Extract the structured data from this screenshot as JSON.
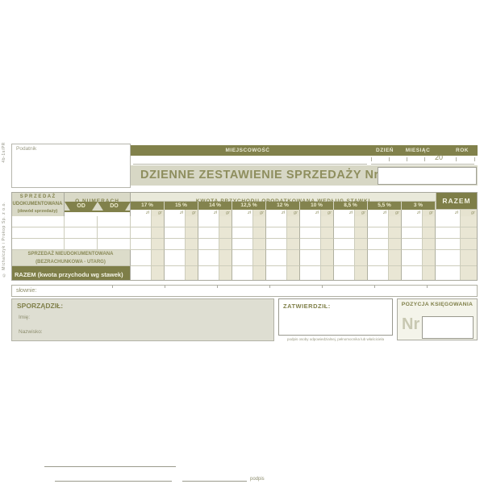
{
  "colors": {
    "olive_dark": "#81814b",
    "olive_text": "#83834e",
    "olive_light_bg": "#d9d9c7",
    "gr_shade": "#e6e3d0",
    "paper": "#ffffff"
  },
  "margin": {
    "form_code": "4b-1s/PR",
    "publisher": "© Michalczyk i Prokop  Sp. z o.o."
  },
  "header": {
    "podatnik_label": "Podatnik",
    "miejscowosc": "MIEJSCOWOŚĆ",
    "dzien": "DZIEŃ",
    "miesiac": "MIESIĄC",
    "rok": "ROK",
    "year_prefix": "20",
    "title": "DZIENNE ZESTAWIENIE SPRZEDAŻY Nr"
  },
  "table": {
    "documented": {
      "line1": "S P R Z E D A Ż",
      "line2": "UDOKUMENTOWANA",
      "line3": "(dowód sprzedaży)"
    },
    "numbers_header": "O NUMERACH",
    "od": "OD",
    "do": "DO",
    "kwota_header": "KWOTA PRZYCHODU OPODATKOWANA WEDŁUG STAWKI",
    "rates": [
      "17 %",
      "15 %",
      "14 %",
      "12,5 %",
      "12 %",
      "10 %",
      "8,5 %",
      "5,5 %",
      "3 %"
    ],
    "razem_header": "RAZEM",
    "zl": "zł",
    "gr": "gr",
    "empty_rows": 3,
    "undocumented": {
      "line1": "SPRZEDAŻ  NIEUDOKUMENTOWANA",
      "line2": "(BEZRACHUNKOWA - UTARG)"
    },
    "total_row": "RAZEM  (kwota przychodu wg stawek)"
  },
  "slownie_label": "słownie:",
  "footer": {
    "sporzadzil_label": "SPORZĄDZIŁ:",
    "imie_label": "Imię:",
    "nazwisko_label": "Nazwisko:",
    "podpis_label": "podpis",
    "zatwierdzil_label": "ZATWIERDZIŁ:",
    "zatwierdzil_caption": "podpis osoby odpowiedzialnej, pełnomocnika lub właściciela",
    "pozycja_label": "POZYCJA KSIĘGOWANIA",
    "nr_label": "Nr"
  }
}
